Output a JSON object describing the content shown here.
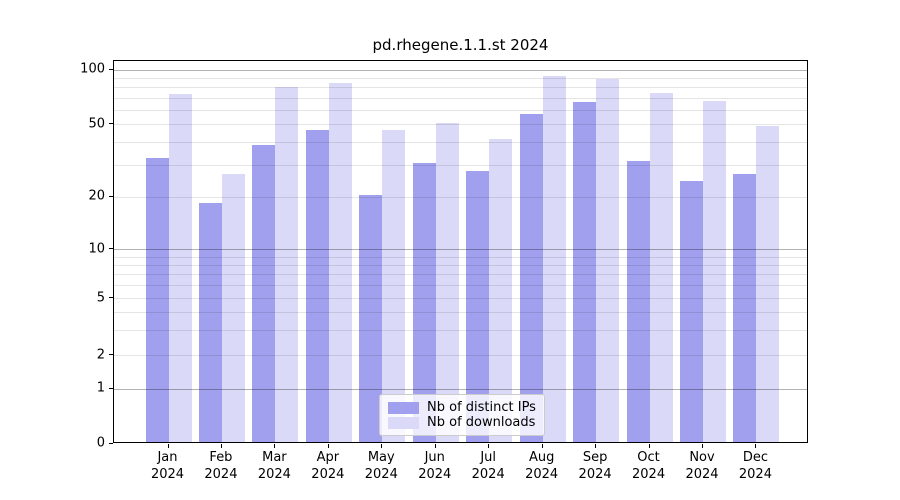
{
  "chart_data": {
    "type": "bar",
    "title": "pd.rhegene.1.1.st 2024",
    "x": {
      "categories": [
        "Jan",
        "Feb",
        "Mar",
        "Apr",
        "May",
        "Jun",
        "Jul",
        "Aug",
        "Sep",
        "Oct",
        "Nov",
        "Dec"
      ],
      "sub_label": "2024"
    },
    "series": [
      {
        "name": "Nb of distinct IPs",
        "color": "#a0a0ee",
        "values": [
          32,
          18,
          38,
          46,
          20,
          30,
          27,
          56,
          65,
          31,
          24,
          26
        ]
      },
      {
        "name": "Nb of downloads",
        "color": "#dadaf8",
        "values": [
          72,
          26,
          79,
          83,
          46,
          50,
          41,
          90,
          87,
          73,
          66,
          48
        ]
      }
    ],
    "y_axis": {
      "scale": "asinh",
      "ylim": [
        0,
        107
      ],
      "labeled_ticks": [
        0,
        1,
        2,
        5,
        10,
        20,
        50,
        100
      ],
      "major_gridlines": [
        1,
        10,
        100
      ],
      "minor_gridlines": [
        2,
        3,
        4,
        5,
        6,
        7,
        8,
        9,
        20,
        30,
        40,
        50,
        60,
        70,
        80,
        90
      ],
      "tick_fractions": [
        [
          0,
          0
        ],
        [
          1,
          0.1436
        ],
        [
          2,
          0.2298
        ],
        [
          5,
          0.3786
        ],
        [
          10,
          0.5078
        ],
        [
          20,
          0.6449
        ],
        [
          50,
          0.8329
        ],
        [
          100,
          0.9765
        ]
      ]
    },
    "grid": {
      "on": true,
      "major_color": "rgba(0,0,0,0.30)",
      "minor_color": "rgba(0,0,0,0.10)"
    },
    "legend": {
      "position": "lower center",
      "entries": [
        "Nb of distinct IPs",
        "Nb of downloads"
      ]
    }
  }
}
